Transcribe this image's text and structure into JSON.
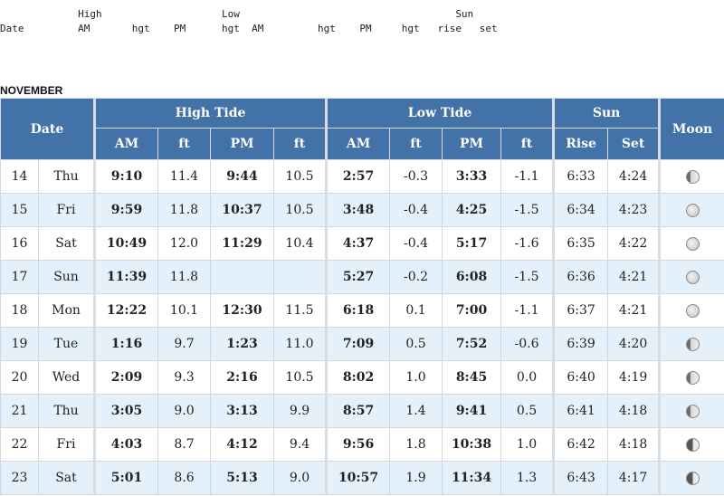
{
  "legend": {
    "line1": "             High                    Low                                    Sun",
    "line2": "Date         AM       hgt    PM      hgt  AM         hgt    PM     hgt   rise   set"
  },
  "month": "NOVEMBER",
  "headers": {
    "date": "Date",
    "high_tide": "High Tide",
    "low_tide": "Low Tide",
    "sun": "Sun",
    "moon": "Moon",
    "am": "AM",
    "ft": "ft",
    "pm": "PM",
    "rise": "Rise",
    "set": "Set"
  },
  "rows": [
    {
      "day": "14",
      "dow": "Thu",
      "h_am": "9:10",
      "h_am_ft": "11.4",
      "h_pm": "9:44",
      "h_pm_ft": "10.5",
      "l_am": "2:57",
      "l_am_ft": "-0.3",
      "l_pm": "3:33",
      "l_pm_ft": "-1.1",
      "rise": "6:33",
      "set": "4:24",
      "moon": "moon-waxing-gibbous-icon",
      "phase": "gib"
    },
    {
      "day": "15",
      "dow": "Fri",
      "h_am": "9:59",
      "h_am_ft": "11.8",
      "h_pm": "10:37",
      "h_pm_ft": "10.5",
      "l_am": "3:48",
      "l_am_ft": "-0.4",
      "l_pm": "4:25",
      "l_pm_ft": "-1.5",
      "rise": "6:34",
      "set": "4:23",
      "moon": "moon-full-icon",
      "phase": "full"
    },
    {
      "day": "16",
      "dow": "Sat",
      "h_am": "10:49",
      "h_am_ft": "12.0",
      "h_pm": "11:29",
      "h_pm_ft": "10.4",
      "l_am": "4:37",
      "l_am_ft": "-0.4",
      "l_pm": "5:17",
      "l_pm_ft": "-1.6",
      "rise": "6:35",
      "set": "4:22",
      "moon": "moon-full-icon",
      "phase": "full"
    },
    {
      "day": "17",
      "dow": "Sun",
      "h_am": "11:39",
      "h_am_ft": "11.8",
      "h_pm": "",
      "h_pm_ft": "",
      "l_am": "5:27",
      "l_am_ft": "-0.2",
      "l_pm": "6:08",
      "l_pm_ft": "-1.5",
      "rise": "6:36",
      "set": "4:21",
      "moon": "moon-full-icon",
      "phase": "full"
    },
    {
      "day": "18",
      "dow": "Mon",
      "h_am": "12:22",
      "h_am_ft": "10.1",
      "h_pm": "12:30",
      "h_pm_ft": "11.5",
      "l_am": "6:18",
      "l_am_ft": "0.1",
      "l_pm": "7:00",
      "l_pm_ft": "-1.1",
      "rise": "6:37",
      "set": "4:21",
      "moon": "moon-full-icon",
      "phase": "full"
    },
    {
      "day": "19",
      "dow": "Tue",
      "h_am": "1:16",
      "h_am_ft": "9.7",
      "h_pm": "1:23",
      "h_pm_ft": "11.0",
      "l_am": "7:09",
      "l_am_ft": "0.5",
      "l_pm": "7:52",
      "l_pm_ft": "-0.6",
      "rise": "6:39",
      "set": "4:20",
      "moon": "moon-waning-gibbous-icon",
      "phase": "gib"
    },
    {
      "day": "20",
      "dow": "Wed",
      "h_am": "2:09",
      "h_am_ft": "9.3",
      "h_pm": "2:16",
      "h_pm_ft": "10.5",
      "l_am": "8:02",
      "l_am_ft": "1.0",
      "l_pm": "8:45",
      "l_pm_ft": "0.0",
      "rise": "6:40",
      "set": "4:19",
      "moon": "moon-waning-gibbous-icon",
      "phase": "gib"
    },
    {
      "day": "21",
      "dow": "Thu",
      "h_am": "3:05",
      "h_am_ft": "9.0",
      "h_pm": "3:13",
      "h_pm_ft": "9.9",
      "l_am": "8:57",
      "l_am_ft": "1.4",
      "l_pm": "9:41",
      "l_pm_ft": "0.5",
      "rise": "6:41",
      "set": "4:18",
      "moon": "moon-waning-gibbous-icon",
      "phase": "gib"
    },
    {
      "day": "22",
      "dow": "Fri",
      "h_am": "4:03",
      "h_am_ft": "8.7",
      "h_pm": "4:12",
      "h_pm_ft": "9.4",
      "l_am": "9:56",
      "l_am_ft": "1.8",
      "l_pm": "10:38",
      "l_pm_ft": "1.0",
      "rise": "6:42",
      "set": "4:18",
      "moon": "moon-last-quarter-icon",
      "phase": "half"
    },
    {
      "day": "23",
      "dow": "Sat",
      "h_am": "5:01",
      "h_am_ft": "8.6",
      "h_pm": "5:13",
      "h_pm_ft": "9.0",
      "l_am": "10:57",
      "l_am_ft": "1.9",
      "l_pm": "11:34",
      "l_pm_ft": "1.3",
      "rise": "6:43",
      "set": "4:17",
      "moon": "moon-last-quarter-icon",
      "phase": "half"
    }
  ]
}
